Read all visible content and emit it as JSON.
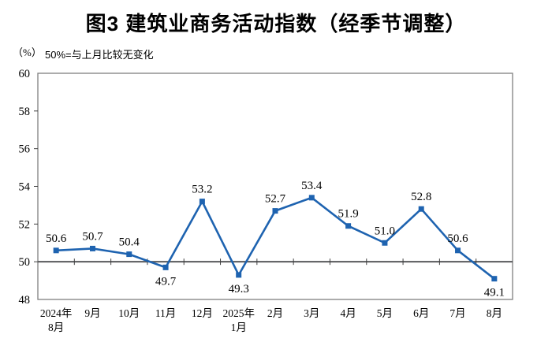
{
  "title": "图3  建筑业商务活动指数（经季节调整）",
  "unit_label": "（%）",
  "note": "50%=与上月比较无变化",
  "colors": {
    "line": "#1E63B0",
    "reference_line": "#58595B",
    "frame": "#7f7f7f",
    "tick": "#404040",
    "text": "#000000"
  },
  "chart_data": {
    "type": "line",
    "title": "图3  建筑业商务活动指数（经季节调整）",
    "ylabel": "（%）",
    "note": "50%=与上月比较无变化",
    "categories": [
      "2024年\n8月",
      "9月",
      "10月",
      "11月",
      "12月",
      "2025年\n1月",
      "2月",
      "3月",
      "4月",
      "5月",
      "6月",
      "7月",
      "8月"
    ],
    "values": [
      50.6,
      50.7,
      50.4,
      49.7,
      53.2,
      49.3,
      52.7,
      53.4,
      51.9,
      51.0,
      52.8,
      50.6,
      49.1
    ],
    "data_labels": [
      "50.6",
      "50.7",
      "50.4",
      "49.7",
      "53.2",
      "49.3",
      "52.7",
      "53.4",
      "51.9",
      "51.0",
      "52.8",
      "50.6",
      "49.1"
    ],
    "label_position": [
      "above",
      "above",
      "above",
      "below",
      "above",
      "below",
      "above",
      "above",
      "above",
      "above",
      "above",
      "above",
      "below"
    ],
    "ylim": [
      48,
      60
    ],
    "ytick_step": 2,
    "ytick_labels": [
      "48",
      "50",
      "52",
      "54",
      "56",
      "58",
      "60"
    ],
    "reference_line": 50,
    "grid": false,
    "legend": false,
    "marker": "square"
  }
}
